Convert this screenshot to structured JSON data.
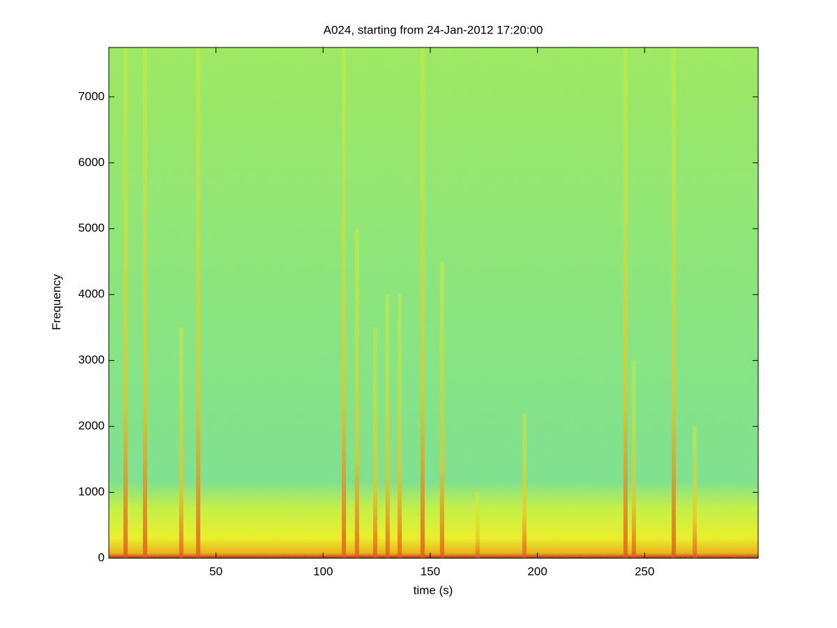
{
  "chart_data": {
    "type": "spectrogram",
    "title": "A024, starting from 24-Jan-2012 17:20:00",
    "x_label": "time (s)",
    "y_label": "Frequency",
    "xlim": [
      0,
      303
    ],
    "ylim": [
      0,
      7750
    ],
    "xticks": [
      50,
      100,
      150,
      200,
      250
    ],
    "yticks": [
      0,
      1000,
      2000,
      3000,
      4000,
      5000,
      6000,
      7000
    ],
    "x": [
      7.8,
      16.9,
      33.8,
      41.7,
      109.7,
      115.8,
      124.3,
      130.1,
      135.7,
      146.4,
      155.5,
      172.1,
      193.9,
      241.1,
      245,
      263.6,
      273.4
    ],
    "values": [
      7750,
      7750,
      3500,
      7750,
      7750,
      5000,
      3500,
      4000,
      4000,
      7750,
      4500,
      1000,
      2200,
      7750,
      3000,
      7750,
      2000
    ]
  }
}
